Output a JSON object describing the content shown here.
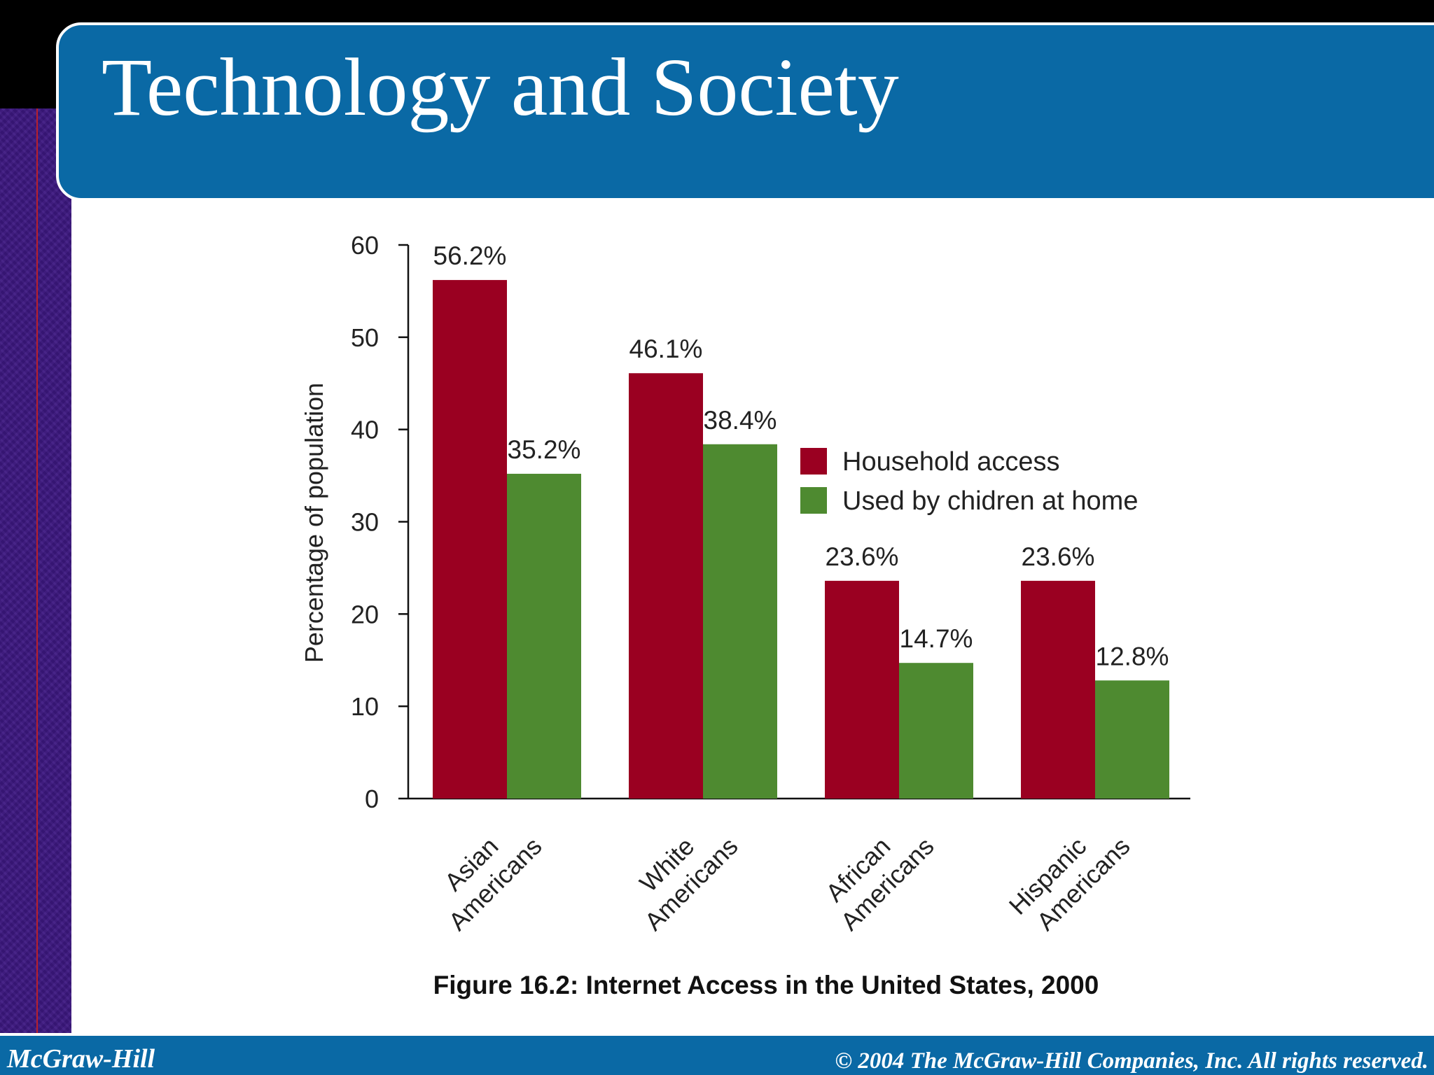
{
  "slide": {
    "title": "Technology and Society",
    "footer_left": "McGraw-Hill",
    "footer_right": "© 2004 The McGraw-Hill Companies, Inc. All rights reserved.",
    "caption": "Figure 16.2: Internet Access in the United States, 2000"
  },
  "colors": {
    "title_bar": "#0a69a5",
    "left_band": "#3c1780",
    "household": "#9a0021",
    "children": "#4e8a30"
  },
  "chart_data": {
    "type": "bar",
    "ylabel": "Percentage of population",
    "xlabel": "",
    "ylim": [
      0,
      60
    ],
    "yticks": [
      0,
      10,
      20,
      30,
      40,
      50,
      60
    ],
    "categories": [
      [
        "Asian",
        "Americans"
      ],
      [
        "White",
        "Americans"
      ],
      [
        "African",
        "Americans"
      ],
      [
        "Hispanic",
        "Americans"
      ]
    ],
    "series": [
      {
        "name": "Household access",
        "color": "#9a0021",
        "values": [
          56.2,
          46.1,
          23.6,
          23.6
        ],
        "labels": [
          "56.2%",
          "46.1%",
          "23.6%",
          "23.6%"
        ]
      },
      {
        "name": "Used by chidren at home",
        "color": "#4e8a30",
        "values": [
          35.2,
          38.4,
          14.7,
          12.8
        ],
        "labels": [
          "35.2%",
          "38.4%",
          "14.7%",
          "12.8%"
        ]
      }
    ],
    "legend": "right",
    "grid": false
  }
}
